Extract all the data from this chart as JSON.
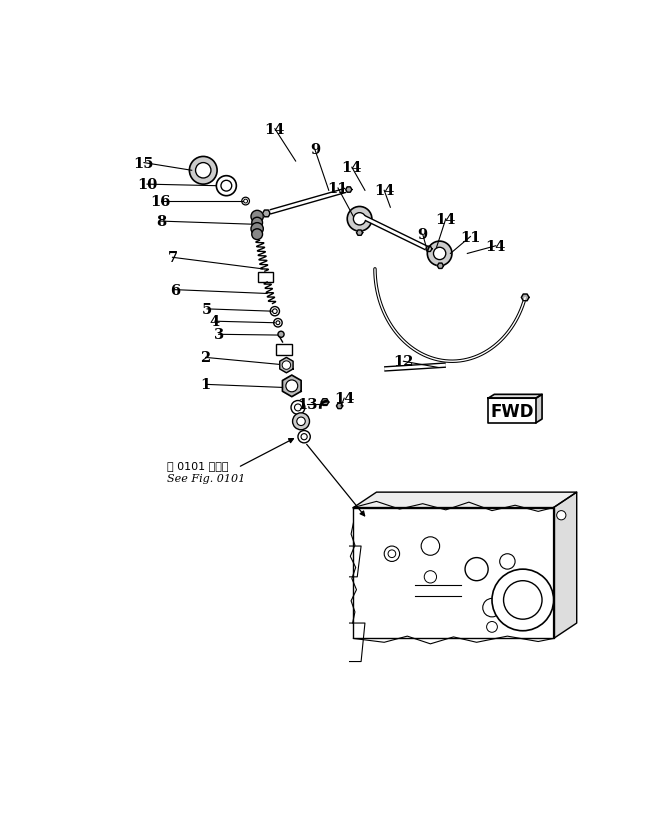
{
  "bg_color": "#ffffff",
  "line_color": "#000000",
  "fig_width": 6.58,
  "fig_height": 8.37,
  "dpi": 100,
  "see_fig_jp": "第 0101 図参照",
  "see_fig_en": "See Fig. 0101"
}
